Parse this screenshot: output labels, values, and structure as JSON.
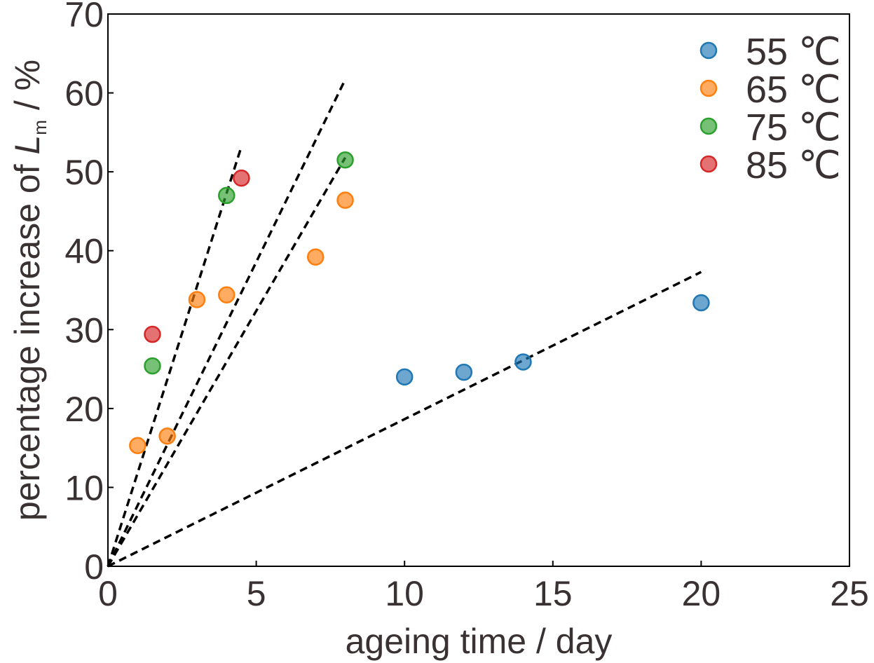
{
  "chart_data": {
    "type": "scatter",
    "xlabel": "ageing time / day",
    "ylabel": {
      "prefix": "percentage increase of ",
      "symbol": "L",
      "subscript": "m",
      "suffix": " / %"
    },
    "xlim": [
      0,
      25
    ],
    "ylim": [
      0,
      70
    ],
    "xticks": [
      0,
      5,
      10,
      15,
      20,
      25
    ],
    "yticks": [
      0,
      10,
      20,
      30,
      40,
      50,
      60,
      70
    ],
    "grid": false,
    "legend_position": "top-right",
    "series": [
      {
        "name": "55 ℃",
        "color": "#1f77b4",
        "points": [
          [
            10,
            24.0
          ],
          [
            12,
            24.6
          ],
          [
            14,
            25.9
          ],
          [
            20,
            33.4
          ]
        ],
        "fit_line": [
          [
            0,
            0
          ],
          [
            20,
            37.3
          ]
        ]
      },
      {
        "name": "65 ℃",
        "color": "#ff7f0e",
        "points": [
          [
            1,
            15.3
          ],
          [
            2,
            16.5
          ],
          [
            3,
            33.8
          ],
          [
            4,
            34.4
          ],
          [
            7,
            39.2
          ],
          [
            8,
            46.4
          ]
        ],
        "fit_line": [
          [
            0,
            0
          ],
          [
            8,
            61.7
          ]
        ]
      },
      {
        "name": "75 ℃",
        "color": "#2ca02c",
        "points": [
          [
            1.5,
            25.4
          ],
          [
            4,
            47.0
          ],
          [
            8,
            51.5
          ]
        ],
        "fit_line": [
          [
            0,
            0
          ],
          [
            8,
            51.8
          ]
        ]
      },
      {
        "name": "85 ℃",
        "color": "#d62728",
        "points": [
          [
            1.5,
            29.4
          ],
          [
            4.5,
            49.2
          ]
        ],
        "fit_line": [
          [
            0,
            0
          ],
          [
            4.5,
            53.2
          ]
        ]
      }
    ]
  }
}
